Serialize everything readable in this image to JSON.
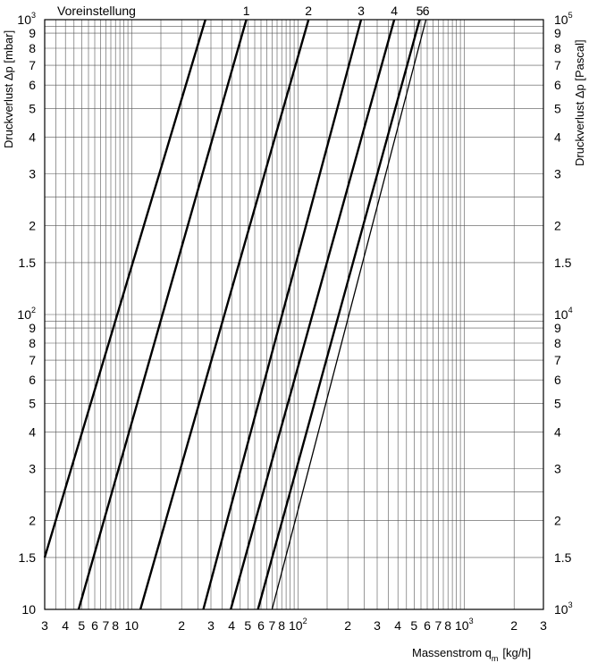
{
  "chart_data": {
    "type": "line",
    "title": "",
    "preset_header": "Voreinstellung",
    "x_axis": {
      "label": "Massenstrom q",
      "label_sub": "m",
      "label_unit": "[kg/h]",
      "scale": "log",
      "range": [
        3,
        3000
      ],
      "ticks": [
        {
          "v": 3,
          "t": "3"
        },
        {
          "v": 4,
          "t": "4"
        },
        {
          "v": 5,
          "t": "5"
        },
        {
          "v": 6,
          "t": "6"
        },
        {
          "v": 7,
          "t": "7"
        },
        {
          "v": 8,
          "t": "8"
        },
        {
          "v": 10,
          "t": "10"
        },
        {
          "v": 20,
          "t": "2"
        },
        {
          "v": 30,
          "t": "3"
        },
        {
          "v": 40,
          "t": "4"
        },
        {
          "v": 50,
          "t": "5"
        },
        {
          "v": 60,
          "t": "6"
        },
        {
          "v": 70,
          "t": "7"
        },
        {
          "v": 80,
          "t": "8"
        },
        {
          "v": 100,
          "t": "10",
          "sup": "2"
        },
        {
          "v": 200,
          "t": "2"
        },
        {
          "v": 300,
          "t": "3"
        },
        {
          "v": 400,
          "t": "4"
        },
        {
          "v": 500,
          "t": "5"
        },
        {
          "v": 600,
          "t": "6"
        },
        {
          "v": 700,
          "t": "7"
        },
        {
          "v": 800,
          "t": "8"
        },
        {
          "v": 1000,
          "t": "10",
          "sup": "3"
        },
        {
          "v": 2000,
          "t": "2"
        },
        {
          "v": 3000,
          "t": "3"
        }
      ]
    },
    "y_axis_left": {
      "label": "Druckverlust Δp [mbar]",
      "scale": "log",
      "range": [
        10,
        1000
      ],
      "ticks": [
        {
          "v": 10,
          "t": "10"
        },
        {
          "v": 15,
          "t": "1.5"
        },
        {
          "v": 20,
          "t": "2"
        },
        {
          "v": 30,
          "t": "3"
        },
        {
          "v": 40,
          "t": "4"
        },
        {
          "v": 50,
          "t": "5"
        },
        {
          "v": 60,
          "t": "6"
        },
        {
          "v": 70,
          "t": "7"
        },
        {
          "v": 80,
          "t": "8"
        },
        {
          "v": 90,
          "t": "9"
        },
        {
          "v": 100,
          "t": "10",
          "sup": "2"
        },
        {
          "v": 150,
          "t": "1.5"
        },
        {
          "v": 200,
          "t": "2"
        },
        {
          "v": 300,
          "t": "3"
        },
        {
          "v": 400,
          "t": "4"
        },
        {
          "v": 500,
          "t": "5"
        },
        {
          "v": 600,
          "t": "6"
        },
        {
          "v": 700,
          "t": "7"
        },
        {
          "v": 800,
          "t": "8"
        },
        {
          "v": 900,
          "t": "9"
        },
        {
          "v": 1000,
          "t": "10",
          "sup": "3"
        }
      ]
    },
    "y_axis_right": {
      "label": "Druckverlust Δp [Pascal]",
      "scale": "log",
      "range": [
        1000,
        100000
      ],
      "ticks": [
        {
          "v": 1000,
          "t": "10",
          "sup": "3"
        },
        {
          "v": 1500,
          "t": "1.5"
        },
        {
          "v": 2000,
          "t": "2"
        },
        {
          "v": 3000,
          "t": "3"
        },
        {
          "v": 4000,
          "t": "4"
        },
        {
          "v": 5000,
          "t": "5"
        },
        {
          "v": 6000,
          "t": "6"
        },
        {
          "v": 7000,
          "t": "7"
        },
        {
          "v": 8000,
          "t": "8"
        },
        {
          "v": 9000,
          "t": "9"
        },
        {
          "v": 10000,
          "t": "10",
          "sup": "4"
        },
        {
          "v": 15000,
          "t": "1.5"
        },
        {
          "v": 20000,
          "t": "2"
        },
        {
          "v": 30000,
          "t": "3"
        },
        {
          "v": 40000,
          "t": "4"
        },
        {
          "v": 50000,
          "t": "5"
        },
        {
          "v": 60000,
          "t": "6"
        },
        {
          "v": 70000,
          "t": "7"
        },
        {
          "v": 80000,
          "t": "8"
        },
        {
          "v": 90000,
          "t": "9"
        },
        {
          "v": 100000,
          "t": "10",
          "sup": "5"
        }
      ]
    },
    "grid": true,
    "series": [
      {
        "label": "",
        "points": [
          [
            3.0,
            15
          ],
          [
            27.8,
            1000
          ]
        ]
      },
      {
        "name": "1",
        "points": [
          [
            4.8,
            10
          ],
          [
            49,
            1000
          ]
        ]
      },
      {
        "name": "2",
        "points": [
          [
            11.3,
            10
          ],
          [
            116,
            1000
          ]
        ]
      },
      {
        "name": "3",
        "points": [
          [
            27,
            10
          ],
          [
            240,
            1000
          ]
        ]
      },
      {
        "name": "4",
        "points": [
          [
            39.5,
            10
          ],
          [
            380,
            1000
          ]
        ]
      },
      {
        "name": "5",
        "points": [
          [
            57.5,
            10
          ],
          [
            540,
            1000
          ]
        ]
      },
      {
        "name": "6",
        "points": [
          [
            70,
            10
          ],
          [
            590,
            1000
          ]
        ]
      }
    ]
  }
}
